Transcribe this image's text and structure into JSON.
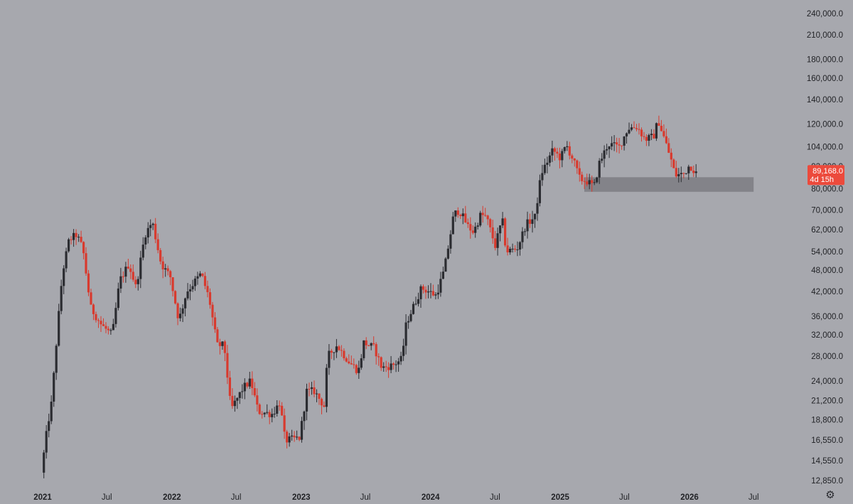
{
  "chart_data": {
    "type": "candlestick",
    "title": "",
    "xlabel": "",
    "ylabel": "",
    "y_scale": "log",
    "ylim": [
      12000,
      250000
    ],
    "xlim": [
      "2020-12-28",
      "2026-07-31"
    ],
    "grid": false,
    "y_ticks": [
      {
        "value": 240000,
        "label": "240,000.0"
      },
      {
        "value": 210000,
        "label": "210,000.0"
      },
      {
        "value": 180000,
        "label": "180,000.0"
      },
      {
        "value": 160000,
        "label": "160,000.0"
      },
      {
        "value": 140000,
        "label": "140,000.0"
      },
      {
        "value": 120000,
        "label": "120,000.0"
      },
      {
        "value": 104000,
        "label": "104,000.0"
      },
      {
        "value": 92000,
        "label": "92,000.0"
      },
      {
        "value": 80000,
        "label": "80,000.0"
      },
      {
        "value": 70000,
        "label": "70,000.0"
      },
      {
        "value": 62000,
        "label": "62,000.0"
      },
      {
        "value": 54000,
        "label": "54,000.0"
      },
      {
        "value": 48000,
        "label": "48,000.0"
      },
      {
        "value": 42000,
        "label": "42,000.0"
      },
      {
        "value": 36000,
        "label": "36,000.0"
      },
      {
        "value": 32000,
        "label": "32,000.0"
      },
      {
        "value": 28000,
        "label": "28,000.0"
      },
      {
        "value": 24000,
        "label": "24,000.0"
      },
      {
        "value": 21200,
        "label": "21,200.0"
      },
      {
        "value": 18800,
        "label": "18,800.0"
      },
      {
        "value": 16550,
        "label": "16,550.0"
      },
      {
        "value": 14550,
        "label": "14,550.0"
      },
      {
        "value": 12850,
        "label": "12,850.0"
      }
    ],
    "x_ticks": [
      {
        "date": "2021-01-01",
        "label": "2021",
        "year": true
      },
      {
        "date": "2021-07-01",
        "label": "Jul",
        "year": false
      },
      {
        "date": "2022-01-01",
        "label": "2022",
        "year": true
      },
      {
        "date": "2022-07-01",
        "label": "Jul",
        "year": false
      },
      {
        "date": "2023-01-01",
        "label": "2023",
        "year": true
      },
      {
        "date": "2023-07-01",
        "label": "Jul",
        "year": false
      },
      {
        "date": "2024-01-01",
        "label": "2024",
        "year": true
      },
      {
        "date": "2024-07-01",
        "label": "Jul",
        "year": false
      },
      {
        "date": "2025-01-01",
        "label": "2025",
        "year": true
      },
      {
        "date": "2025-07-01",
        "label": "Jul",
        "year": false
      },
      {
        "date": "2026-01-01",
        "label": "2026",
        "year": true
      },
      {
        "date": "2026-07-01",
        "label": "Jul",
        "year": false
      }
    ],
    "current_price": {
      "value": 89168,
      "label": "89,168.0",
      "countdown": "4d 15h"
    },
    "support_zone": {
      "low": 78500,
      "high": 86000,
      "start": "2025-03-10",
      "end": "2026-07-01"
    },
    "colors": {
      "up": "#2b2c31",
      "down": "#d83a2e",
      "zone": "#7c7d83",
      "price_tag": "#ec4a3c",
      "background": "#a7a8ae"
    },
    "anchors": [
      [
        "2021-01-01",
        13500
      ],
      [
        "2021-01-18",
        18000
      ],
      [
        "2021-01-30",
        21000
      ],
      [
        "2021-02-15",
        33000
      ],
      [
        "2021-03-01",
        47000
      ],
      [
        "2021-03-20",
        58000
      ],
      [
        "2021-04-10",
        60000
      ],
      [
        "2021-04-28",
        55000
      ],
      [
        "2021-05-20",
        38000
      ],
      [
        "2021-06-20",
        34000
      ],
      [
        "2021-07-20",
        32000
      ],
      [
        "2021-08-10",
        45000
      ],
      [
        "2021-09-05",
        50000
      ],
      [
        "2021-09-25",
        43000
      ],
      [
        "2021-10-20",
        60000
      ],
      [
        "2021-11-10",
        65000
      ],
      [
        "2021-12-05",
        50000
      ],
      [
        "2021-12-31",
        46000
      ],
      [
        "2022-01-24",
        35000
      ],
      [
        "2022-02-15",
        42000
      ],
      [
        "2022-03-28",
        47000
      ],
      [
        "2022-04-20",
        40000
      ],
      [
        "2022-05-12",
        30000
      ],
      [
        "2022-06-01",
        30000
      ],
      [
        "2022-06-20",
        20000
      ],
      [
        "2022-07-25",
        23000
      ],
      [
        "2022-08-15",
        24000
      ],
      [
        "2022-09-05",
        19800
      ],
      [
        "2022-10-15",
        19500
      ],
      [
        "2022-11-05",
        21000
      ],
      [
        "2022-11-20",
        16500
      ],
      [
        "2022-12-31",
        16800
      ],
      [
        "2023-01-20",
        22500
      ],
      [
        "2023-02-10",
        22500
      ],
      [
        "2023-03-10",
        20500
      ],
      [
        "2023-03-20",
        28000
      ],
      [
        "2023-04-15",
        30000
      ],
      [
        "2023-05-20",
        27000
      ],
      [
        "2023-06-15",
        25500
      ],
      [
        "2023-06-30",
        30500
      ],
      [
        "2023-07-30",
        29500
      ],
      [
        "2023-08-20",
        26000
      ],
      [
        "2023-09-20",
        26500
      ],
      [
        "2023-10-15",
        27500
      ],
      [
        "2023-10-28",
        34500
      ],
      [
        "2023-12-10",
        43000
      ],
      [
        "2024-01-20",
        41000
      ],
      [
        "2024-02-12",
        48000
      ],
      [
        "2024-03-10",
        68000
      ],
      [
        "2024-03-25",
        70000
      ],
      [
        "2024-04-20",
        63000
      ],
      [
        "2024-05-05",
        61000
      ],
      [
        "2024-05-25",
        68000
      ],
      [
        "2024-06-10",
        67000
      ],
      [
        "2024-07-05",
        56000
      ],
      [
        "2024-07-25",
        66000
      ],
      [
        "2024-08-05",
        54000
      ],
      [
        "2024-09-05",
        55000
      ],
      [
        "2024-09-30",
        64000
      ],
      [
        "2024-10-25",
        67000
      ],
      [
        "2024-11-12",
        88000
      ],
      [
        "2024-12-15",
        102000
      ],
      [
        "2025-01-05",
        97000
      ],
      [
        "2025-01-22",
        105000
      ],
      [
        "2025-02-10",
        96000
      ],
      [
        "2025-03-01",
        85000
      ],
      [
        "2025-03-20",
        84000
      ],
      [
        "2025-04-10",
        81000
      ],
      [
        "2025-04-25",
        94000
      ],
      [
        "2025-05-20",
        106000
      ],
      [
        "2025-06-20",
        104000
      ],
      [
        "2025-07-15",
        117000
      ],
      [
        "2025-08-10",
        118000
      ],
      [
        "2025-09-01",
        109000
      ],
      [
        "2025-09-25",
        111000
      ],
      [
        "2025-10-08",
        123000
      ],
      [
        "2025-10-25",
        110000
      ],
      [
        "2025-11-15",
        95000
      ],
      [
        "2025-11-25",
        87000
      ],
      [
        "2025-12-20",
        88000
      ],
      [
        "2026-01-05",
        93000
      ],
      [
        "2026-01-20",
        89168
      ]
    ]
  }
}
